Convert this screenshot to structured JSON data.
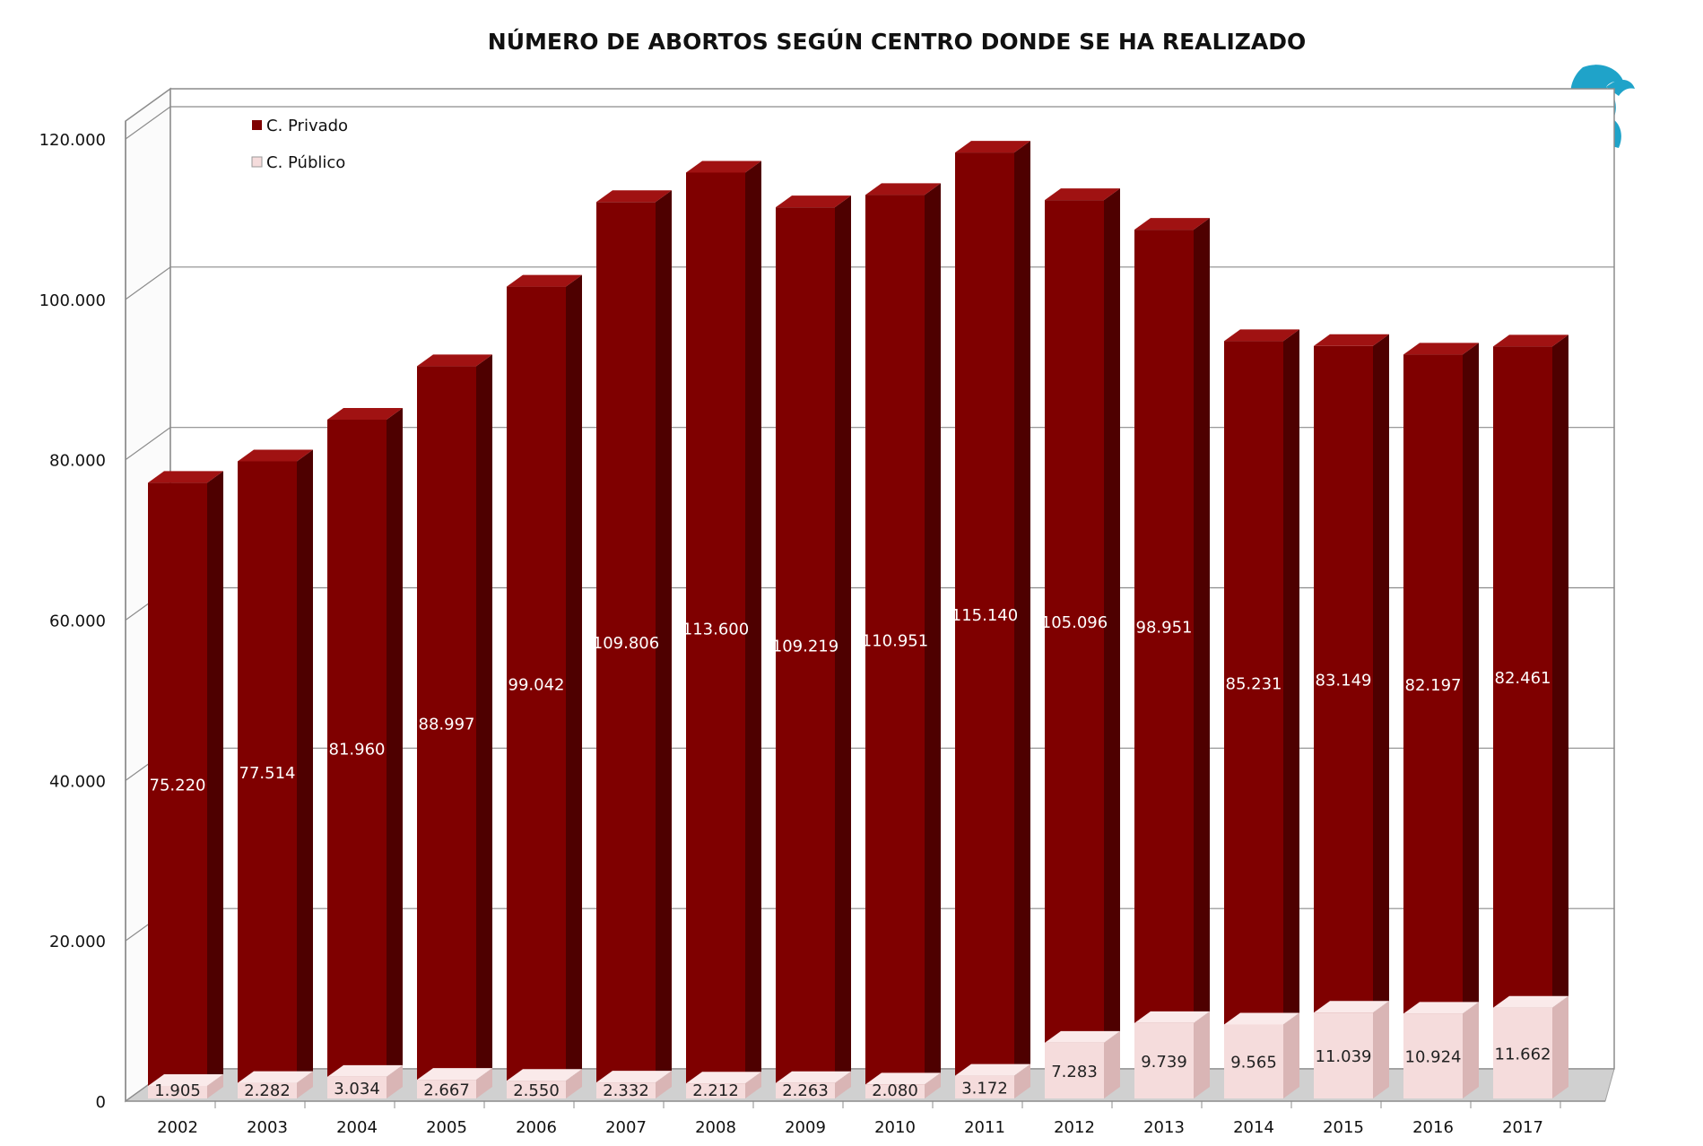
{
  "colors": {
    "privado_front": "#7f0000",
    "privado_side": "#4e0000",
    "privado_top": "#a01212",
    "publico_front": "#f5dcdc",
    "publico_side": "#d9b5b5",
    "publico_top": "#faeaea",
    "grid": "#8c8c8c",
    "logo": "#1fa3c9"
  },
  "logo_icon": "griffin-logo-icon",
  "chart_data": {
    "type": "bar",
    "stacked": true,
    "style": "3d-column",
    "title": "NÚMERO DE ABORTOS SEGÚN CENTRO DONDE SE HA REALIZADO",
    "xlabel": "",
    "ylabel": "",
    "ylim": [
      0,
      120000
    ],
    "yticks": [
      0,
      20000,
      40000,
      60000,
      80000,
      100000,
      120000
    ],
    "ytick_labels": [
      "0",
      "20.000",
      "40.000",
      "60.000",
      "80.000",
      "100.000",
      "120.000"
    ],
    "grid": true,
    "legend_position": "top-left",
    "categories": [
      "2002",
      "2003",
      "2004",
      "2005",
      "2006",
      "2007",
      "2008",
      "2009",
      "2010",
      "2011",
      "2012",
      "2013",
      "2014",
      "2015",
      "2016",
      "2017"
    ],
    "series": [
      {
        "name": "C. Público",
        "values": [
          1905,
          2282,
          3034,
          2667,
          2550,
          2332,
          2212,
          2263,
          2080,
          3172,
          7283,
          9739,
          9565,
          11039,
          10924,
          11662
        ],
        "labels": [
          "1.905",
          "2.282",
          "3.034",
          "2.667",
          "2.550",
          "2.332",
          "2.212",
          "2.263",
          "2.080",
          "3.172",
          "7.283",
          "9.739",
          "9.565",
          "11.039",
          "10.924",
          "11.662"
        ]
      },
      {
        "name": "C. Privado",
        "values": [
          75220,
          77514,
          81960,
          88997,
          99042,
          109806,
          113600,
          109219,
          110951,
          115140,
          105096,
          98951,
          85231,
          83149,
          82197,
          82461
        ],
        "labels": [
          "75.220",
          "77.514",
          "81.960",
          "88.997",
          "99.042",
          "109.806",
          "113.600",
          "109.219",
          "110.951",
          "115.140",
          "105.096",
          "98.951",
          "85.231",
          "83.149",
          "82.197",
          "82.461"
        ]
      }
    ],
    "legend": [
      "C. Privado",
      "C. Público"
    ]
  }
}
